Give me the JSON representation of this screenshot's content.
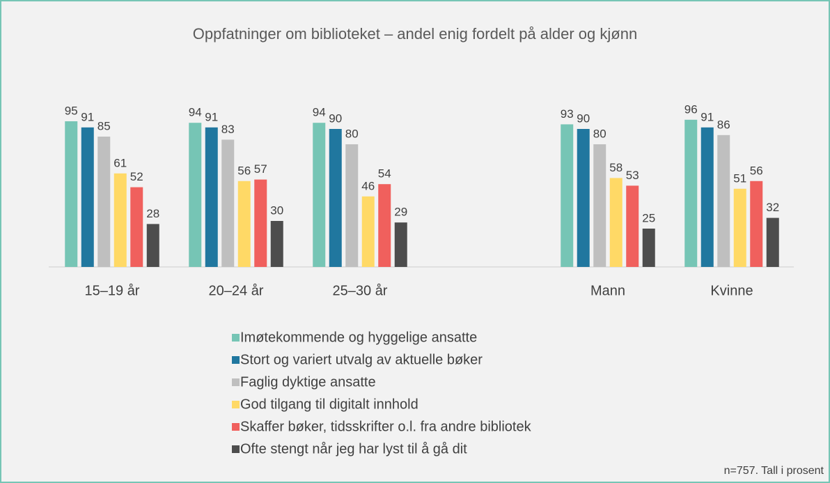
{
  "chart_data": {
    "type": "bar",
    "title": "Oppfatninger om biblioteket – andel enig fordelt på alder og kjønn",
    "categories": [
      "15–19 år",
      "20–24 år",
      "25–30 år",
      null,
      "Mann",
      "Kvinne"
    ],
    "series": [
      {
        "name": "Imøtekommende og hyggelige ansatte",
        "color": "#76c5b5",
        "values": [
          95,
          94,
          94,
          null,
          93,
          96
        ]
      },
      {
        "name": "Stort og variert utvalg av aktuelle bøker",
        "color": "#20779f",
        "values": [
          91,
          91,
          90,
          null,
          90,
          91
        ]
      },
      {
        "name": "Faglig dyktige ansatte",
        "color": "#bfbfbf",
        "values": [
          85,
          83,
          80,
          null,
          80,
          86
        ]
      },
      {
        "name": "God tilgang til digitalt innhold",
        "color": "#ffd966",
        "values": [
          61,
          56,
          46,
          null,
          58,
          51
        ]
      },
      {
        "name": "Skaffer bøker, tidsskrifter o.l. fra andre bibliotek",
        "color": "#f0605d",
        "values": [
          52,
          57,
          54,
          null,
          53,
          56
        ]
      },
      {
        "name": "Ofte stengt når jeg har lyst til å gå dit",
        "color": "#4d4d4d",
        "values": [
          28,
          30,
          29,
          null,
          25,
          32
        ]
      }
    ],
    "note": "n=757. Tall i prosent"
  }
}
